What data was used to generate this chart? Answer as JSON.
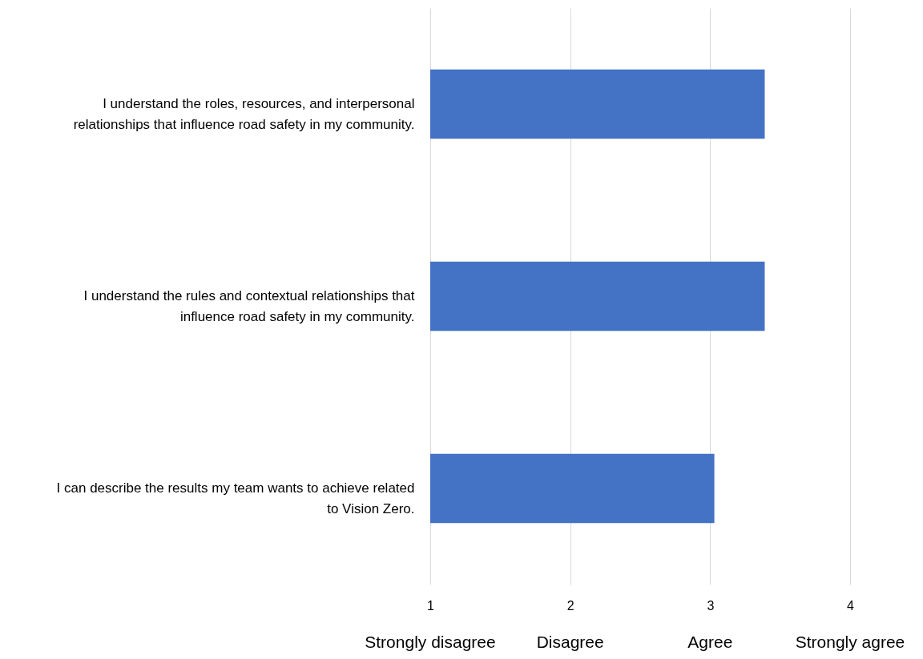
{
  "chart_data": {
    "type": "bar",
    "orientation": "horizontal",
    "categories": [
      "I understand the roles, resources, and interpersonal relationships that influence road safety in my community.",
      "I understand the rules and contextual relationships that influence road safety in my community.",
      "I can describe the results my team wants to achieve related to Vision Zero."
    ],
    "values": [
      3.39,
      3.39,
      3.03
    ],
    "color": "#4472c4",
    "xlim": [
      1,
      4
    ],
    "xticks": [
      1,
      2,
      3,
      4
    ],
    "grid": "x",
    "annotations": [
      "Strongly disagree",
      "Disagree",
      "Agree",
      "Strongly agree"
    ]
  }
}
